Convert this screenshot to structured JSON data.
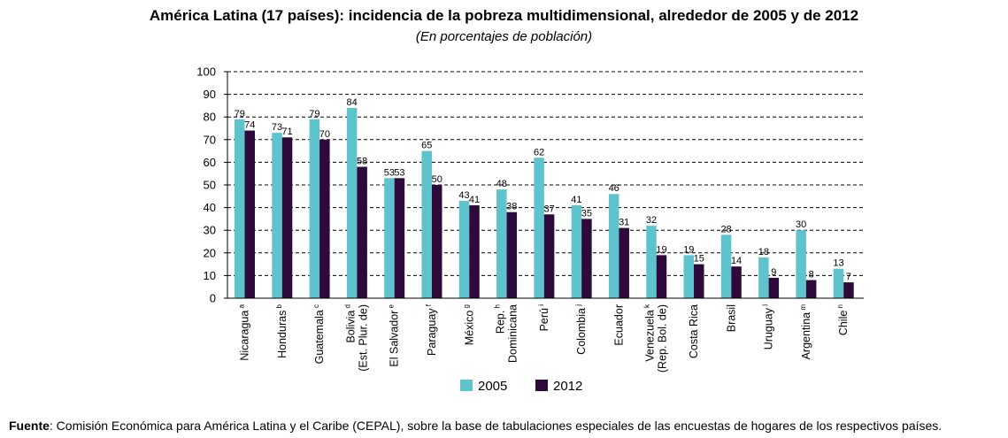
{
  "title": "América Latina (17 países): incidencia de la pobreza multidimensional, alrededor de 2005 y de 2012",
  "subtitle": "(En porcentajes de población)",
  "source": {
    "label": "Fuente",
    "text": ":  Comisión Económica para América Latina y el Caribe (CEPAL), sobre la base de tabulaciones especiales de las encuestas de hogares de los respectivos países."
  },
  "colors": {
    "series_2005": "#5ec3cc",
    "series_2012": "#2e0a3c"
  },
  "chart_data": {
    "type": "bar",
    "categories": [
      {
        "lines": [
          "Nicaragua"
        ],
        "sup": "a"
      },
      {
        "lines": [
          "Honduras"
        ],
        "sup": "b"
      },
      {
        "lines": [
          "Guatemala"
        ],
        "sup": "c"
      },
      {
        "lines": [
          "Bolivia",
          "(Est. Plur. de)"
        ],
        "sup": "d"
      },
      {
        "lines": [
          "El Salvador"
        ],
        "sup": "e"
      },
      {
        "lines": [
          "Paraguay"
        ],
        "sup": "f"
      },
      {
        "lines": [
          "México"
        ],
        "sup": "g"
      },
      {
        "lines": [
          "Rep.",
          "Dominicana"
        ],
        "sup": "h"
      },
      {
        "lines": [
          "Perú"
        ],
        "sup": "i"
      },
      {
        "lines": [
          "Colombia"
        ],
        "sup": "j"
      },
      {
        "lines": [
          "Ecuador"
        ],
        "sup": ""
      },
      {
        "lines": [
          "Venezuela",
          "(Rep. Bol. de)"
        ],
        "sup": "k"
      },
      {
        "lines": [
          "Costa Rica"
        ],
        "sup": ""
      },
      {
        "lines": [
          "Brasil"
        ],
        "sup": ""
      },
      {
        "lines": [
          "Uruguay"
        ],
        "sup": "l"
      },
      {
        "lines": [
          "Argentina"
        ],
        "sup": "m"
      },
      {
        "lines": [
          "Chile"
        ],
        "sup": "n"
      }
    ],
    "series": [
      {
        "name": "2005",
        "values": [
          79,
          73,
          79,
          84,
          53,
          65,
          43,
          48,
          62,
          41,
          46,
          32,
          19,
          28,
          18,
          30,
          13
        ]
      },
      {
        "name": "2012",
        "values": [
          74,
          71,
          70,
          58,
          53,
          50,
          41,
          38,
          37,
          35,
          31,
          19,
          15,
          14,
          9,
          8,
          7
        ]
      }
    ],
    "ylim": [
      0,
      100
    ],
    "yticks": [
      0,
      10,
      20,
      30,
      40,
      50,
      60,
      70,
      80,
      90,
      100
    ],
    "grid": true,
    "legend_position": "bottom"
  }
}
